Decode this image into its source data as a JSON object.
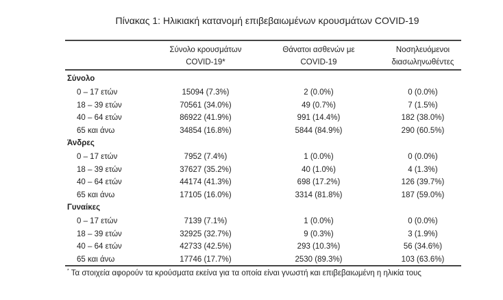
{
  "title": "Πίνακας 1: Ηλικιακή κατανομή επιβεβαιωμένων κρουσμάτων COVID-19",
  "headers": [
    {
      "line1": "Σύνολο κρουσμάτων",
      "line2": "COVID-19*"
    },
    {
      "line1": "Θάνατοι ασθενών με",
      "line2": "COVID-19"
    },
    {
      "line1": "Νοσηλευόμενοι",
      "line2": "διασωληνωθέντες"
    }
  ],
  "sections": [
    {
      "label": "Σύνολο",
      "rows": [
        {
          "age": "0 – 17 ετών",
          "cases": "15094 (7.3%)",
          "deaths": "2 (0.0%)",
          "intubated": "0 (0.0%)"
        },
        {
          "age": "18 – 39 ετών",
          "cases": "70561 (34.0%)",
          "deaths": "49 (0.7%)",
          "intubated": "7 (1.5%)"
        },
        {
          "age": "40 – 64 ετών",
          "cases": "86922 (41.9%)",
          "deaths": "991 (14.4%)",
          "intubated": "182 (38.0%)"
        },
        {
          "age": "65 και άνω",
          "cases": "34854 (16.8%)",
          "deaths": "5844 (84.9%)",
          "intubated": "290 (60.5%)"
        }
      ]
    },
    {
      "label": "Άνδρες",
      "rows": [
        {
          "age": "0 – 17 ετών",
          "cases": "7952 (7.4%)",
          "deaths": "1 (0.0%)",
          "intubated": "0 (0.0%)"
        },
        {
          "age": "18 – 39 ετών",
          "cases": "37627 (35.2%)",
          "deaths": "40 (1.0%)",
          "intubated": "4 (1.3%)"
        },
        {
          "age": "40 – 64 ετών",
          "cases": "44174 (41.3%)",
          "deaths": "698 (17.2%)",
          "intubated": "126 (39.7%)"
        },
        {
          "age": "65 και άνω",
          "cases": "17105 (16.0%)",
          "deaths": "3314 (81.8%)",
          "intubated": "187 (59.0%)"
        }
      ]
    },
    {
      "label": "Γυναίκες",
      "rows": [
        {
          "age": "0 – 17 ετών",
          "cases": "7139 (7.1%)",
          "deaths": "1 (0.0%)",
          "intubated": "0 (0.0%)"
        },
        {
          "age": "18 – 39 ετών",
          "cases": "32925 (32.7%)",
          "deaths": "9 (0.3%)",
          "intubated": "3 (1.9%)"
        },
        {
          "age": "40 – 64 ετών",
          "cases": "42733 (42.5%)",
          "deaths": "293 (10.3%)",
          "intubated": "56 (34.6%)"
        },
        {
          "age": "65 και άνω",
          "cases": "17746 (17.7%)",
          "deaths": "2530 (89.3%)",
          "intubated": "103 (63.6%)"
        }
      ]
    }
  ],
  "footnote": {
    "mark": "*",
    "text": "Τα στοιχεία αφορούν τα κρούσματα εκείνα για τα οποία είναι γνωστή και επιβεβαιωμένη η ηλικία τους"
  }
}
